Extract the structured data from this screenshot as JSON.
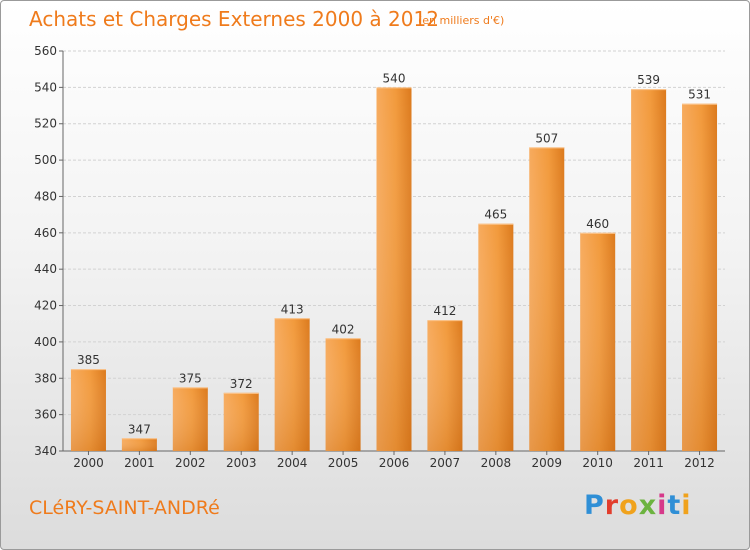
{
  "chart_data": {
    "type": "bar",
    "title": "Achats et Charges Externes 2000 à 2012",
    "subtitle": "(en milliers d'€)",
    "categories": [
      "2000",
      "2001",
      "2002",
      "2003",
      "2004",
      "2005",
      "2006",
      "2007",
      "2008",
      "2009",
      "2010",
      "2011",
      "2012"
    ],
    "values": [
      385,
      347,
      375,
      372,
      413,
      402,
      540,
      412,
      465,
      507,
      460,
      539,
      531
    ],
    "ylim": [
      340,
      560
    ],
    "yticks": [
      340,
      360,
      380,
      400,
      420,
      440,
      460,
      480,
      500,
      520,
      540,
      560
    ],
    "grid": true,
    "legend": "none",
    "bar_color": "#f0902e",
    "bar_color_light": "#f7ab5e",
    "bar_color_dark": "#d87416"
  },
  "footer": {
    "commune": "CLéRY-SAINT-ANDRé",
    "brand": "Proxiti"
  },
  "colors": {
    "accent": "#ef7b1c"
  }
}
